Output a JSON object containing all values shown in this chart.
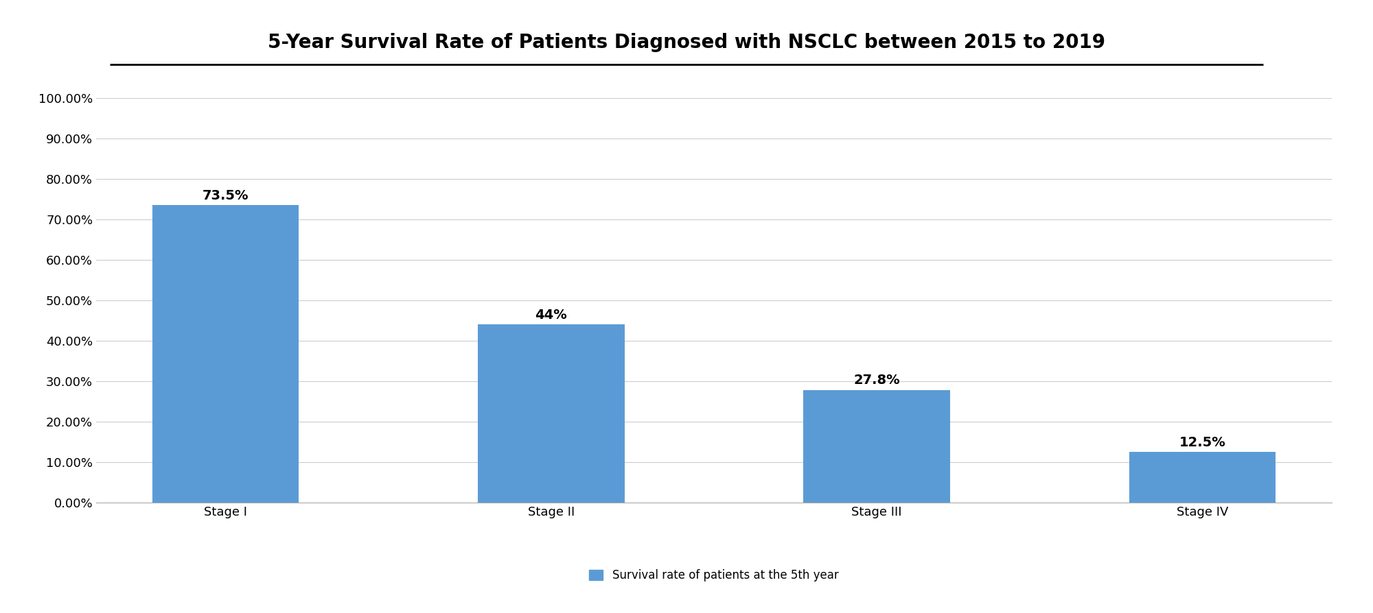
{
  "title": "5-Year Survival Rate of Patients Diagnosed with NSCLC between 2015 to 2019",
  "categories": [
    "Stage I",
    "Stage II",
    "Stage III",
    "Stage IV"
  ],
  "values": [
    0.735,
    0.44,
    0.278,
    0.125
  ],
  "bar_labels": [
    "73.5%",
    "44%",
    "27.8%",
    "12.5%"
  ],
  "bar_color": "#5B9BD5",
  "background_color": "#FFFFFF",
  "ylim": [
    0,
    1.0
  ],
  "yticks": [
    0.0,
    0.1,
    0.2,
    0.3,
    0.4,
    0.5,
    0.6,
    0.7,
    0.8,
    0.9,
    1.0
  ],
  "ytick_labels": [
    "0.00%",
    "10.00%",
    "20.00%",
    "30.00%",
    "40.00%",
    "50.00%",
    "60.00%",
    "70.00%",
    "80.00%",
    "90.00%",
    "100.00%"
  ],
  "legend_label": "Survival rate of patients at the 5th year",
  "title_fontsize": 20,
  "tick_fontsize": 13,
  "label_fontsize": 13,
  "bar_label_fontsize": 14,
  "legend_fontsize": 12,
  "grid_color": "#CCCCCC",
  "bar_width": 0.45
}
